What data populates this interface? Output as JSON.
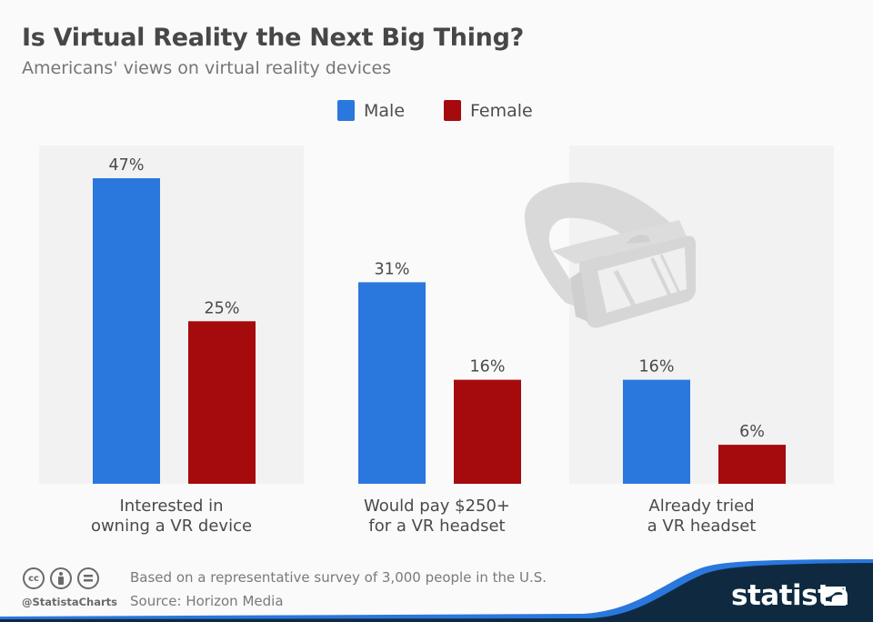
{
  "header": {
    "title": "Is Virtual Reality the Next Big Thing?",
    "subtitle": "Americans' views on virtual reality devices"
  },
  "legend": [
    {
      "label": "Male",
      "color": "#2a77dd"
    },
    {
      "label": "Female",
      "color": "#a50a0d"
    }
  ],
  "chart_data": {
    "type": "bar",
    "title": "Is Virtual Reality the Next Big Thing?",
    "subtitle": "Americans' views on virtual reality devices",
    "categories": [
      [
        "Interested in",
        "owning a VR device"
      ],
      [
        "Would pay $250+",
        "for a VR headset"
      ],
      [
        "Already tried",
        "a VR headset"
      ]
    ],
    "series": [
      {
        "name": "Male",
        "color": "#2a77dd",
        "values": [
          47,
          31,
          16
        ],
        "labels": [
          "47%",
          "31%",
          "16%"
        ]
      },
      {
        "name": "Female",
        "color": "#a50a0d",
        "values": [
          25,
          16,
          6
        ],
        "labels": [
          "25%",
          "16%",
          "6%"
        ]
      }
    ],
    "xlabel": "",
    "ylabel": "",
    "ylim": [
      0,
      52
    ],
    "unit": "%",
    "grid": false,
    "legend_position": "top-center",
    "panel_backgrounds": [
      "#f2f2f2",
      "#fafafa",
      "#f2f2f2"
    ]
  },
  "footer": {
    "note": "Based on a representative survey of 3,000 people in the U.S.",
    "source": "Source: Horizon Media",
    "handle": "@StatistaCharts",
    "brand": "statista",
    "license_icons": [
      "cc",
      "by",
      "nd"
    ],
    "brand_bg": "#0f2a40",
    "accent": "#2a77dd"
  },
  "decoration": {
    "illustration": "vr-headset-icon"
  }
}
